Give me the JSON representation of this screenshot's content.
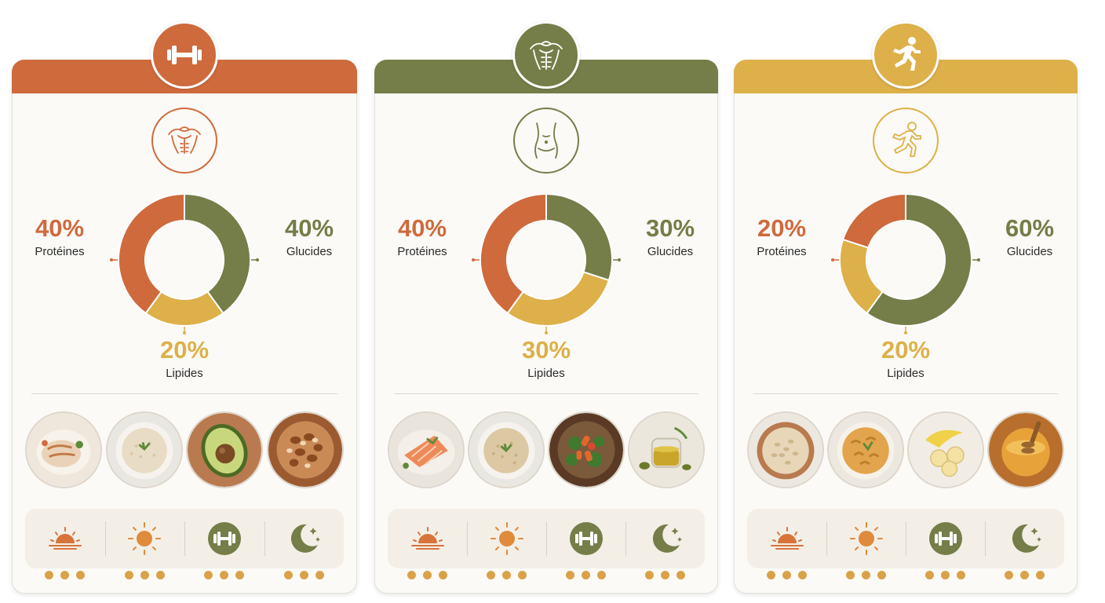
{
  "colors": {
    "orange": "#cf6a3d",
    "green": "#757d48",
    "yellow": "#ddb049",
    "dot": "#d9a24a"
  },
  "chart_data": [
    {
      "type": "pie",
      "header_icon": "dumbbell-icon",
      "body_icon": "muscular-torso-icon",
      "slices": [
        {
          "label": "Protéines",
          "value": 40,
          "display": "40%",
          "color": "#cf6a3d"
        },
        {
          "label": "Glucides",
          "value": 40,
          "display": "40%",
          "color": "#757d48"
        },
        {
          "label": "Lipides",
          "value": 20,
          "display": "20%",
          "color": "#ddb049"
        }
      ],
      "foods": [
        "chicken-icon",
        "rice-icon",
        "avocado-icon",
        "nuts-icon"
      ]
    },
    {
      "type": "pie",
      "header_icon": "abs-torso-icon",
      "body_icon": "slim-waist-icon",
      "slices": [
        {
          "label": "Protéines",
          "value": 40,
          "display": "40%",
          "color": "#cf6a3d"
        },
        {
          "label": "Glucides",
          "value": 30,
          "display": "30%",
          "color": "#757d48"
        },
        {
          "label": "Lipides",
          "value": 30,
          "display": "30%",
          "color": "#ddb049"
        }
      ],
      "foods": [
        "salmon-icon",
        "brown-rice-icon",
        "vegetables-icon",
        "olive-oil-icon"
      ]
    },
    {
      "type": "pie",
      "header_icon": "runner-icon",
      "body_icon": "runner-outline-icon",
      "slices": [
        {
          "label": "Protéines",
          "value": 20,
          "display": "20%",
          "color": "#cf6a3d"
        },
        {
          "label": "Glucides",
          "value": 60,
          "display": "60%",
          "color": "#757d48"
        },
        {
          "label": "Lipides",
          "value": 20,
          "display": "20%",
          "color": "#ddb049"
        }
      ],
      "foods": [
        "oats-icon",
        "pasta-icon",
        "banana-icon",
        "honey-icon"
      ]
    }
  ],
  "timeline_icons": [
    "sunrise-icon",
    "sun-icon",
    "workout-icon",
    "moon-icon"
  ],
  "dots_per_slot": 3
}
